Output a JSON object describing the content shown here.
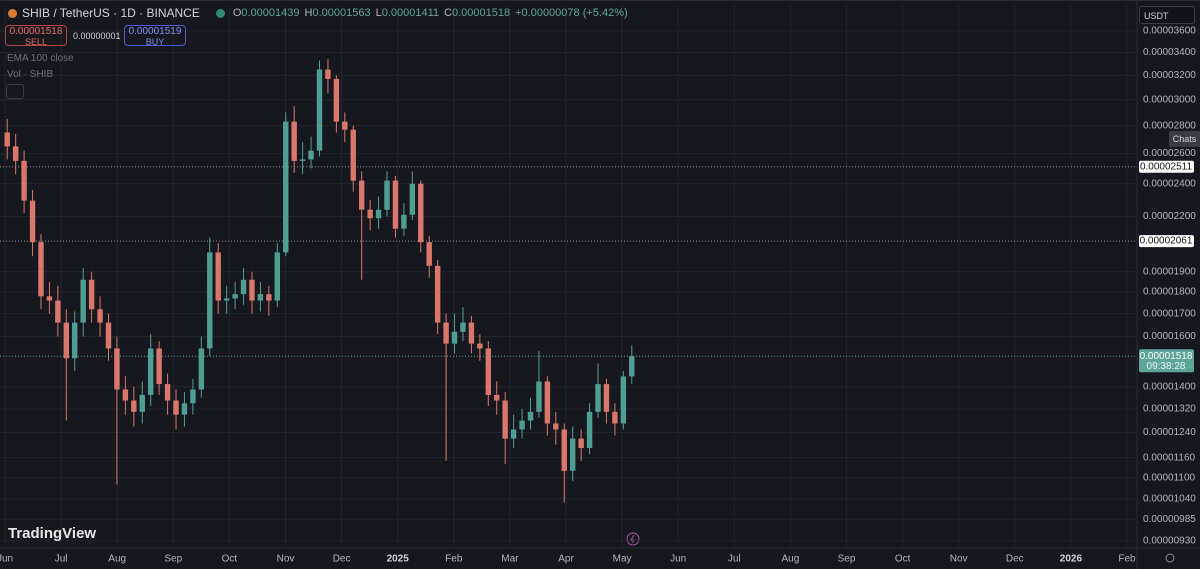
{
  "header": {
    "symbol": "SHIB / TetherUS · 1D · BINANCE",
    "ohlc": [
      {
        "key": "O",
        "value": "0.00001439"
      },
      {
        "key": "H",
        "value": "0.00001563"
      },
      {
        "key": "L",
        "value": "0.00001411"
      },
      {
        "key": "C",
        "value": "0.00001518"
      }
    ],
    "change": "+0.00000078 (+5.42%)",
    "sell": {
      "price": "0.00001518",
      "label": "SELL"
    },
    "spread": "0.00000001",
    "buy": {
      "price": "0.00001519",
      "label": "BUY"
    },
    "indicators": [
      "EMA 100 close",
      "Vol · SHIB"
    ],
    "currency": "USDT",
    "chats": "Chats",
    "brand": "TradingView"
  },
  "chart_data": {
    "type": "candlestick",
    "log_scale": true,
    "grid": true,
    "up_color": "#4f9e93",
    "down_color": "#d9776a",
    "xticks": [
      "Jun",
      "Jul",
      "Aug",
      "Sep",
      "Oct",
      "Nov",
      "Dec",
      "2025",
      "Feb",
      "Mar",
      "Apr",
      "May",
      "Jun",
      "Jul",
      "Aug",
      "Sep",
      "Oct",
      "Nov",
      "Dec",
      "2026",
      "Feb"
    ],
    "open": [
      2.75e-05,
      2.65e-05,
      2.55e-05,
      2.295e-05,
      2.055e-05,
      1.78e-05,
      1.76e-05,
      1.66e-05,
      1.51e-05,
      1.66e-05,
      1.86e-05,
      1.72e-05,
      1.66e-05,
      1.55e-05,
      1.39e-05,
      1.35e-05,
      1.31e-05,
      1.37e-05,
      1.55e-05,
      1.41e-05,
      1.35e-05,
      1.3e-05,
      1.34e-05,
      1.39e-05,
      1.55e-05,
      2e-05,
      1.76e-05,
      1.77e-05,
      1.79e-05,
      1.86e-05,
      1.76e-05,
      1.79e-05,
      1.76e-05,
      2e-05,
      2.83e-05,
      2.55e-05,
      2.56e-05,
      2.62e-05,
      3.25e-05,
      3.17e-05,
      2.83e-05,
      2.77e-05,
      2.42e-05,
      2.24e-05,
      2.19e-05,
      2.24e-05,
      2.42e-05,
      2.13e-05,
      2.21e-05,
      2.4e-05,
      2.055e-05,
      1.93e-05,
      1.66e-05,
      1.57e-05,
      1.62e-05,
      1.66e-05,
      1.57e-05,
      1.55e-05,
      1.37e-05,
      1.35e-05,
      1.22e-05,
      1.25e-05,
      1.28e-05,
      1.31e-05,
      1.42e-05,
      1.27e-05,
      1.25e-05,
      1.12e-05,
      1.22e-05,
      1.19e-05,
      1.31e-05,
      1.41e-05,
      1.31e-05,
      1.27e-05,
      1.439e-05
    ],
    "high": [
      2.85e-05,
      2.74e-05,
      2.62e-05,
      2.36e-05,
      2.1e-05,
      1.85e-05,
      1.83e-05,
      1.72e-05,
      1.71e-05,
      1.92e-05,
      1.9e-05,
      1.78e-05,
      1.7e-05,
      1.6e-05,
      1.44e-05,
      1.4e-05,
      1.42e-05,
      1.61e-05,
      1.58e-05,
      1.45e-05,
      1.39e-05,
      1.38e-05,
      1.43e-05,
      1.6e-05,
      2.08e-05,
      2.05e-05,
      1.83e-05,
      1.85e-05,
      1.92e-05,
      1.9e-05,
      1.85e-05,
      1.83e-05,
      2.05e-05,
      2.9e-05,
      2.95e-05,
      2.68e-05,
      2.72e-05,
      3.33e-05,
      3.34e-05,
      3.2e-05,
      2.9e-05,
      2.8e-05,
      2.48e-05,
      2.3e-05,
      2.32e-05,
      2.48e-05,
      2.45e-05,
      2.28e-05,
      2.48e-05,
      2.42e-05,
      2.09e-05,
      1.96e-05,
      1.7e-05,
      1.7e-05,
      1.73e-05,
      1.69e-05,
      1.61e-05,
      1.58e-05,
      1.42e-05,
      1.38e-05,
      1.3e-05,
      1.32e-05,
      1.36e-05,
      1.54e-05,
      1.44e-05,
      1.31e-05,
      1.27e-05,
      1.26e-05,
      1.25e-05,
      1.34e-05,
      1.49e-05,
      1.43e-05,
      1.34e-05,
      1.46e-05,
      1.563e-05
    ],
    "low": [
      2.56e-05,
      2.46e-05,
      2.22e-05,
      1.98e-05,
      1.72e-05,
      1.7e-05,
      1.6e-05,
      1.28e-05,
      1.46e-05,
      1.6e-05,
      1.66e-05,
      1.6e-05,
      1.5e-05,
      1.08e-05,
      1.3e-05,
      1.26e-05,
      1.27e-05,
      1.33e-05,
      1.37e-05,
      1.3e-05,
      1.25e-05,
      1.26e-05,
      1.3e-05,
      1.36e-05,
      1.52e-05,
      1.7e-05,
      1.7e-05,
      1.72e-05,
      1.74e-05,
      1.7e-05,
      1.71e-05,
      1.69e-05,
      1.73e-05,
      1.98e-05,
      2.47e-05,
      2.46e-05,
      2.5e-05,
      2.58e-05,
      3.05e-05,
      2.75e-05,
      2.68e-05,
      2.35e-05,
      1.86e-05,
      2.12e-05,
      2.13e-05,
      2.2e-05,
      2.08e-05,
      2.09e-05,
      2.18e-05,
      2e-05,
      1.87e-05,
      1.61e-05,
      1.15e-05,
      1.53e-05,
      1.58e-05,
      1.53e-05,
      1.5e-05,
      1.33e-05,
      1.3e-05,
      1.14e-05,
      1.19e-05,
      1.22e-05,
      1.25e-05,
      1.29e-05,
      1.23e-05,
      1.2e-05,
      1.03e-05,
      1.09e-05,
      1.15e-05,
      1.17e-05,
      1.29e-05,
      1.27e-05,
      1.23e-05,
      1.25e-05,
      1.411e-05
    ],
    "close": [
      2.65e-05,
      2.55e-05,
      2.295e-05,
      2.055e-05,
      1.78e-05,
      1.76e-05,
      1.66e-05,
      1.51e-05,
      1.66e-05,
      1.86e-05,
      1.72e-05,
      1.66e-05,
      1.55e-05,
      1.39e-05,
      1.35e-05,
      1.31e-05,
      1.37e-05,
      1.55e-05,
      1.41e-05,
      1.35e-05,
      1.3e-05,
      1.34e-05,
      1.39e-05,
      1.55e-05,
      2e-05,
      1.76e-05,
      1.77e-05,
      1.79e-05,
      1.86e-05,
      1.76e-05,
      1.79e-05,
      1.76e-05,
      2e-05,
      2.83e-05,
      2.55e-05,
      2.56e-05,
      2.62e-05,
      3.25e-05,
      3.17e-05,
      2.83e-05,
      2.77e-05,
      2.42e-05,
      2.24e-05,
      2.19e-05,
      2.24e-05,
      2.42e-05,
      2.13e-05,
      2.21e-05,
      2.4e-05,
      2.055e-05,
      1.93e-05,
      1.66e-05,
      1.57e-05,
      1.62e-05,
      1.66e-05,
      1.57e-05,
      1.55e-05,
      1.37e-05,
      1.35e-05,
      1.22e-05,
      1.25e-05,
      1.28e-05,
      1.31e-05,
      1.42e-05,
      1.27e-05,
      1.25e-05,
      1.12e-05,
      1.22e-05,
      1.19e-05,
      1.31e-05,
      1.41e-05,
      1.31e-05,
      1.27e-05,
      1.439e-05,
      1.518e-05
    ],
    "ylim": [
      9.15e-06,
      3.857e-05
    ],
    "yticks": [
      {
        "value": 3.6e-05,
        "label": "0.00003600"
      },
      {
        "value": 3.4e-05,
        "label": "0.00003400"
      },
      {
        "value": 3.2e-05,
        "label": "0.00003200"
      },
      {
        "value": 3e-05,
        "label": "0.00003000"
      },
      {
        "value": 2.8e-05,
        "label": "0.00002800"
      },
      {
        "value": 2.6e-05,
        "label": "0.00002600"
      },
      {
        "value": 2.4e-05,
        "label": "0.00002400"
      },
      {
        "value": 2.2e-05,
        "label": "0.00002200"
      },
      {
        "value": 1.9e-05,
        "label": "0.00001900"
      },
      {
        "value": 1.8e-05,
        "label": "0.00001800"
      },
      {
        "value": 1.7e-05,
        "label": "0.00001700"
      },
      {
        "value": 1.6e-05,
        "label": "0.00001600"
      },
      {
        "value": 1.4e-05,
        "label": "0.00001400"
      },
      {
        "value": 1.32e-05,
        "label": "0.00001320"
      },
      {
        "value": 1.24e-05,
        "label": "0.00001240"
      },
      {
        "value": 1.16e-05,
        "label": "0.00001160"
      },
      {
        "value": 1.1e-05,
        "label": "0.00001100"
      },
      {
        "value": 1.04e-05,
        "label": "0.00001040"
      },
      {
        "value": 9.85e-06,
        "label": "0.00000985"
      },
      {
        "value": 9.3e-06,
        "label": "0.00000930"
      }
    ],
    "levels": [
      {
        "value": 2.511e-05,
        "label": "0.00002511"
      },
      {
        "value": 2.061e-05,
        "label": "0.00002061"
      }
    ],
    "last_price": {
      "value": 1.518e-05,
      "label": "0.00001518",
      "countdown": "09:38:28"
    }
  }
}
